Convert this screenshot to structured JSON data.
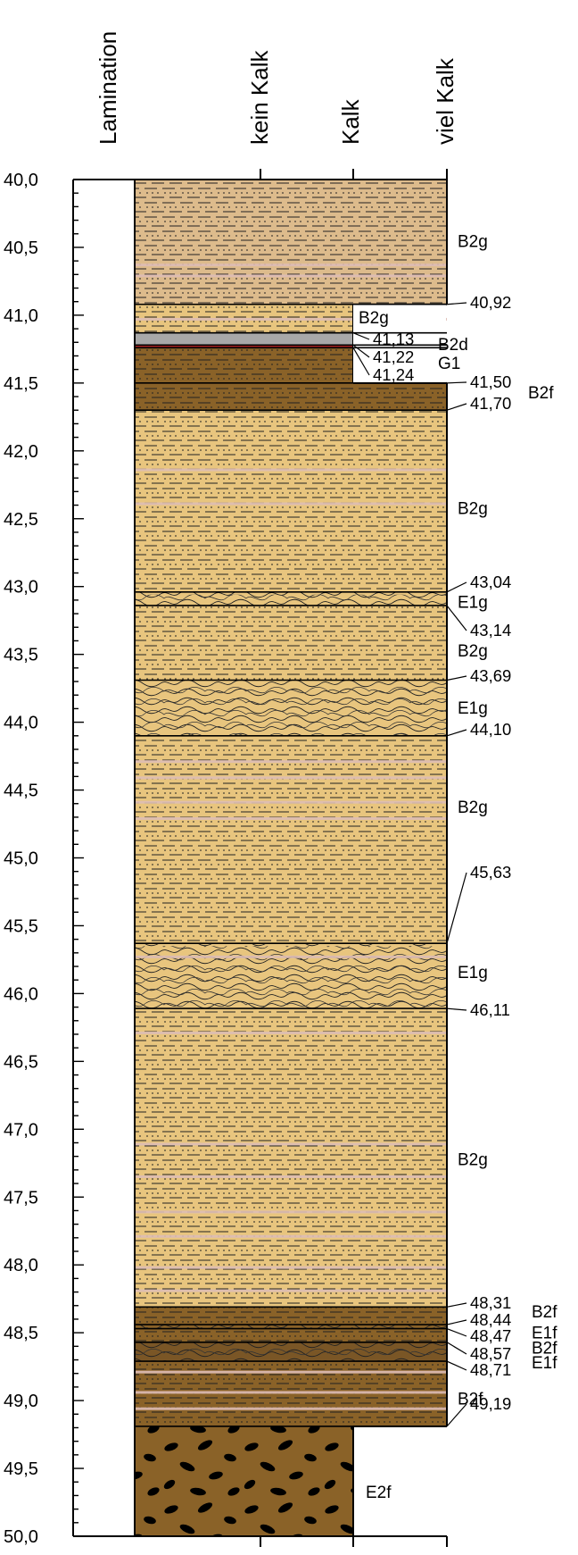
{
  "headers": {
    "lamination": "Lamination",
    "kein_kalk": "kein Kalk",
    "kalk": "Kalk",
    "viel_kalk": "viel Kalk"
  },
  "depth_axis": {
    "min": 40.0,
    "max": 50.0,
    "labels": [
      "40,0",
      "40,5",
      "41,0",
      "41,5",
      "42,0",
      "42,5",
      "43,0",
      "43,5",
      "44,0",
      "44,5",
      "45,0",
      "45,5",
      "46,0",
      "46,5",
      "47,0",
      "47,5",
      "48,0",
      "48,5",
      "49,0",
      "49,5",
      "50,0"
    ]
  },
  "colors": {
    "sand": "#E8C57E",
    "sand_light": "#DDBB8C",
    "brown": "#8A6228",
    "brown_mid": "#7A5626",
    "gray": "#A8A8A8",
    "red": "#B22222",
    "pink_band": "#DDBDB5"
  },
  "boundaries": [
    {
      "depth": 40.92,
      "label": "40,92"
    },
    {
      "depth": 41.13,
      "label": "41,13"
    },
    {
      "depth": 41.22,
      "label": "41,22"
    },
    {
      "depth": 41.24,
      "label": "41,24"
    },
    {
      "depth": 41.5,
      "label": "41,50"
    },
    {
      "depth": 41.7,
      "label": "41,70"
    },
    {
      "depth": 43.04,
      "label": "43,04"
    },
    {
      "depth": 43.14,
      "label": "43,14"
    },
    {
      "depth": 43.69,
      "label": "43,69"
    },
    {
      "depth": 44.1,
      "label": "44,10"
    },
    {
      "depth": 45.63,
      "label": "45,63"
    },
    {
      "depth": 46.11,
      "label": "46,11"
    },
    {
      "depth": 48.31,
      "label": "48,31"
    },
    {
      "depth": 48.44,
      "label": "48,44"
    },
    {
      "depth": 48.47,
      "label": "48,47"
    },
    {
      "depth": 48.57,
      "label": "48,57"
    },
    {
      "depth": 48.71,
      "label": "48,71"
    },
    {
      "depth": 49.19,
      "label": "49,19"
    }
  ],
  "layers": [
    {
      "top": 40.0,
      "bottom": 40.92,
      "unit": "B2g",
      "fill": "sand_light",
      "pattern": "silt",
      "kalk": "viel"
    },
    {
      "top": 40.92,
      "bottom": 41.13,
      "unit": "B2g",
      "fill": "sand",
      "pattern": "silt",
      "kalk": "kalk"
    },
    {
      "top": 41.13,
      "bottom": 41.22,
      "unit": "B2d",
      "fill": "gray",
      "pattern": "none",
      "kalk": "kalk"
    },
    {
      "top": 41.22,
      "bottom": 41.24,
      "unit": "G1",
      "fill": "red",
      "pattern": "none",
      "kalk": "kalk"
    },
    {
      "top": 41.24,
      "bottom": 41.5,
      "unit": "B2f",
      "fill": "brown",
      "pattern": "silt",
      "kalk": "kalk"
    },
    {
      "top": 41.5,
      "bottom": 41.7,
      "unit": "B2f",
      "fill": "brown",
      "pattern": "silt",
      "kalk": "viel"
    },
    {
      "top": 41.7,
      "bottom": 43.04,
      "unit": "B2g",
      "fill": "sand",
      "pattern": "silt",
      "kalk": "viel"
    },
    {
      "top": 43.04,
      "bottom": 43.14,
      "unit": "E1g",
      "fill": "sand",
      "pattern": "wavy",
      "kalk": "viel"
    },
    {
      "top": 43.14,
      "bottom": 43.69,
      "unit": "B2g",
      "fill": "sand",
      "pattern": "silt",
      "kalk": "viel"
    },
    {
      "top": 43.69,
      "bottom": 44.1,
      "unit": "E1g",
      "fill": "sand",
      "pattern": "wavy",
      "kalk": "viel"
    },
    {
      "top": 44.1,
      "bottom": 45.63,
      "unit": "B2g",
      "fill": "sand",
      "pattern": "silt",
      "kalk": "viel"
    },
    {
      "top": 45.63,
      "bottom": 46.11,
      "unit": "E1g",
      "fill": "sand",
      "pattern": "wavy",
      "kalk": "viel"
    },
    {
      "top": 46.11,
      "bottom": 48.31,
      "unit": "B2g",
      "fill": "sand",
      "pattern": "silt",
      "kalk": "viel"
    },
    {
      "top": 48.31,
      "bottom": 48.44,
      "unit": "B2f",
      "fill": "brown",
      "pattern": "silt",
      "kalk": "viel"
    },
    {
      "top": 48.44,
      "bottom": 48.47,
      "unit": "E1f",
      "fill": "brown",
      "pattern": "wavy",
      "kalk": "viel"
    },
    {
      "top": 48.47,
      "bottom": 48.57,
      "unit": "B2f",
      "fill": "brown",
      "pattern": "silt",
      "kalk": "viel"
    },
    {
      "top": 48.57,
      "bottom": 48.71,
      "unit": "E1f",
      "fill": "brown_mid",
      "pattern": "wavy",
      "kalk": "viel"
    },
    {
      "top": 48.71,
      "bottom": 49.19,
      "unit": "B2f",
      "fill": "brown",
      "pattern": "silt",
      "kalk": "viel"
    },
    {
      "top": 49.19,
      "bottom": 50.0,
      "unit": "E2f",
      "fill": "brown",
      "pattern": "clasts",
      "kalk": "kalk"
    }
  ],
  "unit_labels": [
    {
      "text": "B2g",
      "depth": 40.45
    },
    {
      "text": "B2g",
      "depth": 41.02
    },
    {
      "text": "B2d",
      "depth": 41.22
    },
    {
      "text": "G1",
      "depth": 41.37
    },
    {
      "text": "B2f",
      "depth": 41.6
    },
    {
      "text": "B2g",
      "depth": 42.42
    },
    {
      "text": "E1g",
      "depth": 43.11
    },
    {
      "text": "B2g",
      "depth": 43.47
    },
    {
      "text": "E1g",
      "depth": 43.89
    },
    {
      "text": "B2g",
      "depth": 44.62
    },
    {
      "text": "E1g",
      "depth": 45.84
    },
    {
      "text": "B2g",
      "depth": 47.22
    },
    {
      "text": "B2f",
      "depth": 48.36
    },
    {
      "text": "E1f",
      "depth": 48.49
    },
    {
      "text": "B2f",
      "depth": 48.6
    },
    {
      "text": "E1f",
      "depth": 48.71
    },
    {
      "text": "B2f",
      "depth": 48.99
    },
    {
      "text": "E2f",
      "depth": 49.67
    }
  ]
}
